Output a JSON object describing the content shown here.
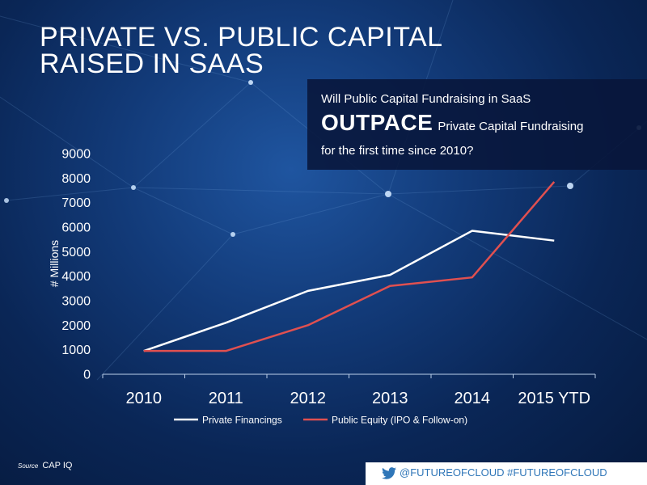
{
  "title": {
    "line1": "PRIVATE VS. PUBLIC CAPITAL",
    "line2": "RAISED IN SAAS"
  },
  "callout": {
    "line1": "Will Public Capital Fundraising in SaaS",
    "emphasis": "OUTPACE",
    "line2_rest": "Private Capital Fundraising",
    "line3": "for the first time since 2010?"
  },
  "chart_data": {
    "type": "line",
    "categories": [
      "2010",
      "2011",
      "2012",
      "2013",
      "2014",
      "2015 YTD"
    ],
    "ylabel": "# Millions",
    "ylim": [
      0,
      9000
    ],
    "yticks": [
      0,
      1000,
      2000,
      3000,
      4000,
      5000,
      6000,
      7000,
      8000,
      9000
    ],
    "grid": false,
    "legend_position": "bottom",
    "series": [
      {
        "name": "Private Financings",
        "color": "#ffffff",
        "values": [
          950,
          2100,
          3400,
          4050,
          5850,
          5450
        ]
      },
      {
        "name": "Public Equity (IPO & Follow-on)",
        "color": "#e05050",
        "values": [
          950,
          950,
          2000,
          3600,
          3950,
          7850
        ]
      }
    ]
  },
  "source": {
    "label": "Source",
    "text": "CAP IQ"
  },
  "footer": {
    "text": "@FUTUREOFCLOUD #FUTUREOFCLOUD",
    "icon": "twitter-bird-icon",
    "color": "#2f76b8"
  }
}
